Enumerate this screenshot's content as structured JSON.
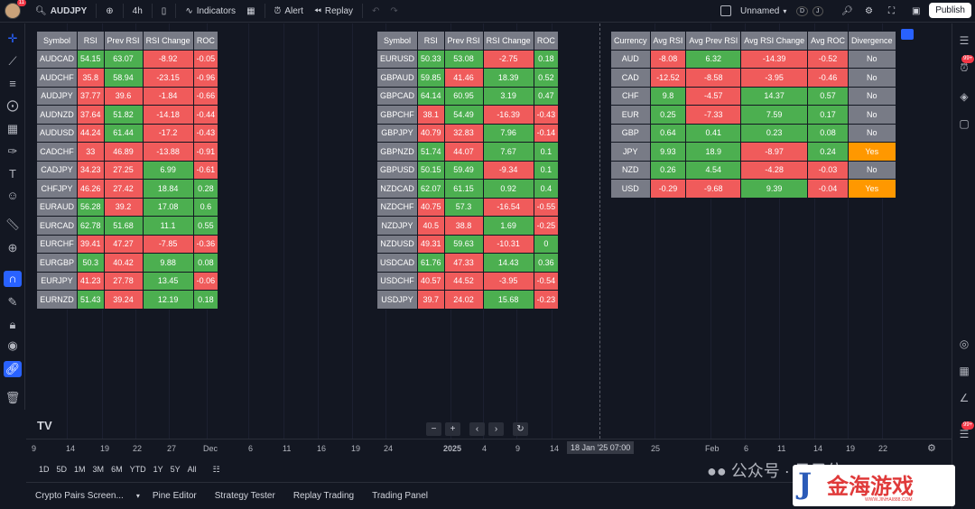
{
  "topbar": {
    "avatar_badge": "11",
    "symbol": "AUDJPY",
    "interval": "4h",
    "indicators": "Indicators",
    "alert": "Alert",
    "replay": "Replay",
    "layout_name": "Unnamed",
    "d_btn": "D",
    "j_btn": "J",
    "publish": "Publish"
  },
  "table1": {
    "headers": [
      "Symbol",
      "RSI",
      "Prev RSI",
      "RSI Change",
      "ROC"
    ],
    "rows": [
      [
        "AUDCAD",
        "54.15",
        "63.07",
        "-8.92",
        "-0.05"
      ],
      [
        "AUDCHF",
        "35.8",
        "58.94",
        "-23.15",
        "-0.96"
      ],
      [
        "AUDJPY",
        "37.77",
        "39.6",
        "-1.84",
        "-0.66"
      ],
      [
        "AUDNZD",
        "37.64",
        "51.82",
        "-14.18",
        "-0.44"
      ],
      [
        "AUDUSD",
        "44.24",
        "61.44",
        "-17.2",
        "-0.43"
      ],
      [
        "CADCHF",
        "33",
        "46.89",
        "-13.88",
        "-0.91"
      ],
      [
        "CADJPY",
        "34.23",
        "27.25",
        "6.99",
        "-0.61"
      ],
      [
        "CHFJPY",
        "46.26",
        "27.42",
        "18.84",
        "0.28"
      ],
      [
        "EURAUD",
        "56.28",
        "39.2",
        "17.08",
        "0.6"
      ],
      [
        "EURCAD",
        "62.78",
        "51.68",
        "11.1",
        "0.55"
      ],
      [
        "EURCHF",
        "39.41",
        "47.27",
        "-7.85",
        "-0.36"
      ],
      [
        "EURGBP",
        "50.3",
        "40.42",
        "9.88",
        "0.08"
      ],
      [
        "EURJPY",
        "41.23",
        "27.78",
        "13.45",
        "-0.06"
      ],
      [
        "EURNZD",
        "51.43",
        "39.24",
        "12.19",
        "0.18"
      ]
    ]
  },
  "table2": {
    "headers": [
      "Symbol",
      "RSI",
      "Prev RSI",
      "RSI Change",
      "ROC"
    ],
    "rows": [
      [
        "EURUSD",
        "50.33",
        "53.08",
        "-2.75",
        "0.18"
      ],
      [
        "GBPAUD",
        "59.85",
        "41.46",
        "18.39",
        "0.52"
      ],
      [
        "GBPCAD",
        "64.14",
        "60.95",
        "3.19",
        "0.47"
      ],
      [
        "GBPCHF",
        "38.1",
        "54.49",
        "-16.39",
        "-0.43"
      ],
      [
        "GBPJPY",
        "40.79",
        "32.83",
        "7.96",
        "-0.14"
      ],
      [
        "GBPNZD",
        "51.74",
        "44.07",
        "7.67",
        "0.1"
      ],
      [
        "GBPUSD",
        "50.15",
        "59.49",
        "-9.34",
        "0.1"
      ],
      [
        "NZDCAD",
        "62.07",
        "61.15",
        "0.92",
        "0.4"
      ],
      [
        "NZDCHF",
        "40.75",
        "57.3",
        "-16.54",
        "-0.55"
      ],
      [
        "NZDJPY",
        "40.5",
        "38.8",
        "1.69",
        "-0.25"
      ],
      [
        "NZDUSD",
        "49.31",
        "59.63",
        "-10.31",
        "0"
      ],
      [
        "USDCAD",
        "61.76",
        "47.33",
        "14.43",
        "0.36"
      ],
      [
        "USDCHF",
        "40.57",
        "44.52",
        "-3.95",
        "-0.54"
      ],
      [
        "USDJPY",
        "39.7",
        "24.02",
        "15.68",
        "-0.23"
      ]
    ]
  },
  "table3": {
    "headers": [
      "Currency",
      "Avg RSI",
      "Avg Prev RSI",
      "Avg RSI Change",
      "Avg ROC",
      "Divergence"
    ],
    "rows": [
      [
        "AUD",
        "-8.08",
        "6.32",
        "-14.39",
        "-0.52",
        "No"
      ],
      [
        "CAD",
        "-12.52",
        "-8.58",
        "-3.95",
        "-0.46",
        "No"
      ],
      [
        "CHF",
        "9.8",
        "-4.57",
        "14.37",
        "0.57",
        "No"
      ],
      [
        "EUR",
        "0.25",
        "-7.33",
        "7.59",
        "0.17",
        "No"
      ],
      [
        "GBP",
        "0.64",
        "0.41",
        "0.23",
        "0.08",
        "No"
      ],
      [
        "JPY",
        "9.93",
        "18.9",
        "-8.97",
        "0.24",
        "Yes"
      ],
      [
        "NZD",
        "0.26",
        "4.54",
        "-4.28",
        "-0.03",
        "No"
      ],
      [
        "USD",
        "-0.29",
        "-9.68",
        "9.39",
        "-0.04",
        "Yes"
      ]
    ]
  },
  "time_axis": [
    "9",
    "14",
    "19",
    "22",
    "27",
    "Dec",
    "6",
    "11",
    "16",
    "19",
    "24",
    "2025",
    "4",
    "9",
    "14",
    "25",
    "Feb",
    "6",
    "11",
    "14",
    "19",
    "22"
  ],
  "crosshair_label": "18 Jan '25   07:00",
  "ranges": [
    "1D",
    "5D",
    "1M",
    "3M",
    "6M",
    "YTD",
    "1Y",
    "5Y",
    "All"
  ],
  "bottom_tabs": [
    "Crypto Pairs Screen...",
    "Pine Editor",
    "Strategy Tester",
    "Replay Trading",
    "Trading Panel"
  ],
  "right_badges": [
    "99+",
    "99+"
  ],
  "watermark": {
    "wechat": "公众号 · 日子位",
    "brand": "金海游戏",
    "url": "WWW.JINHAI888.COM"
  }
}
